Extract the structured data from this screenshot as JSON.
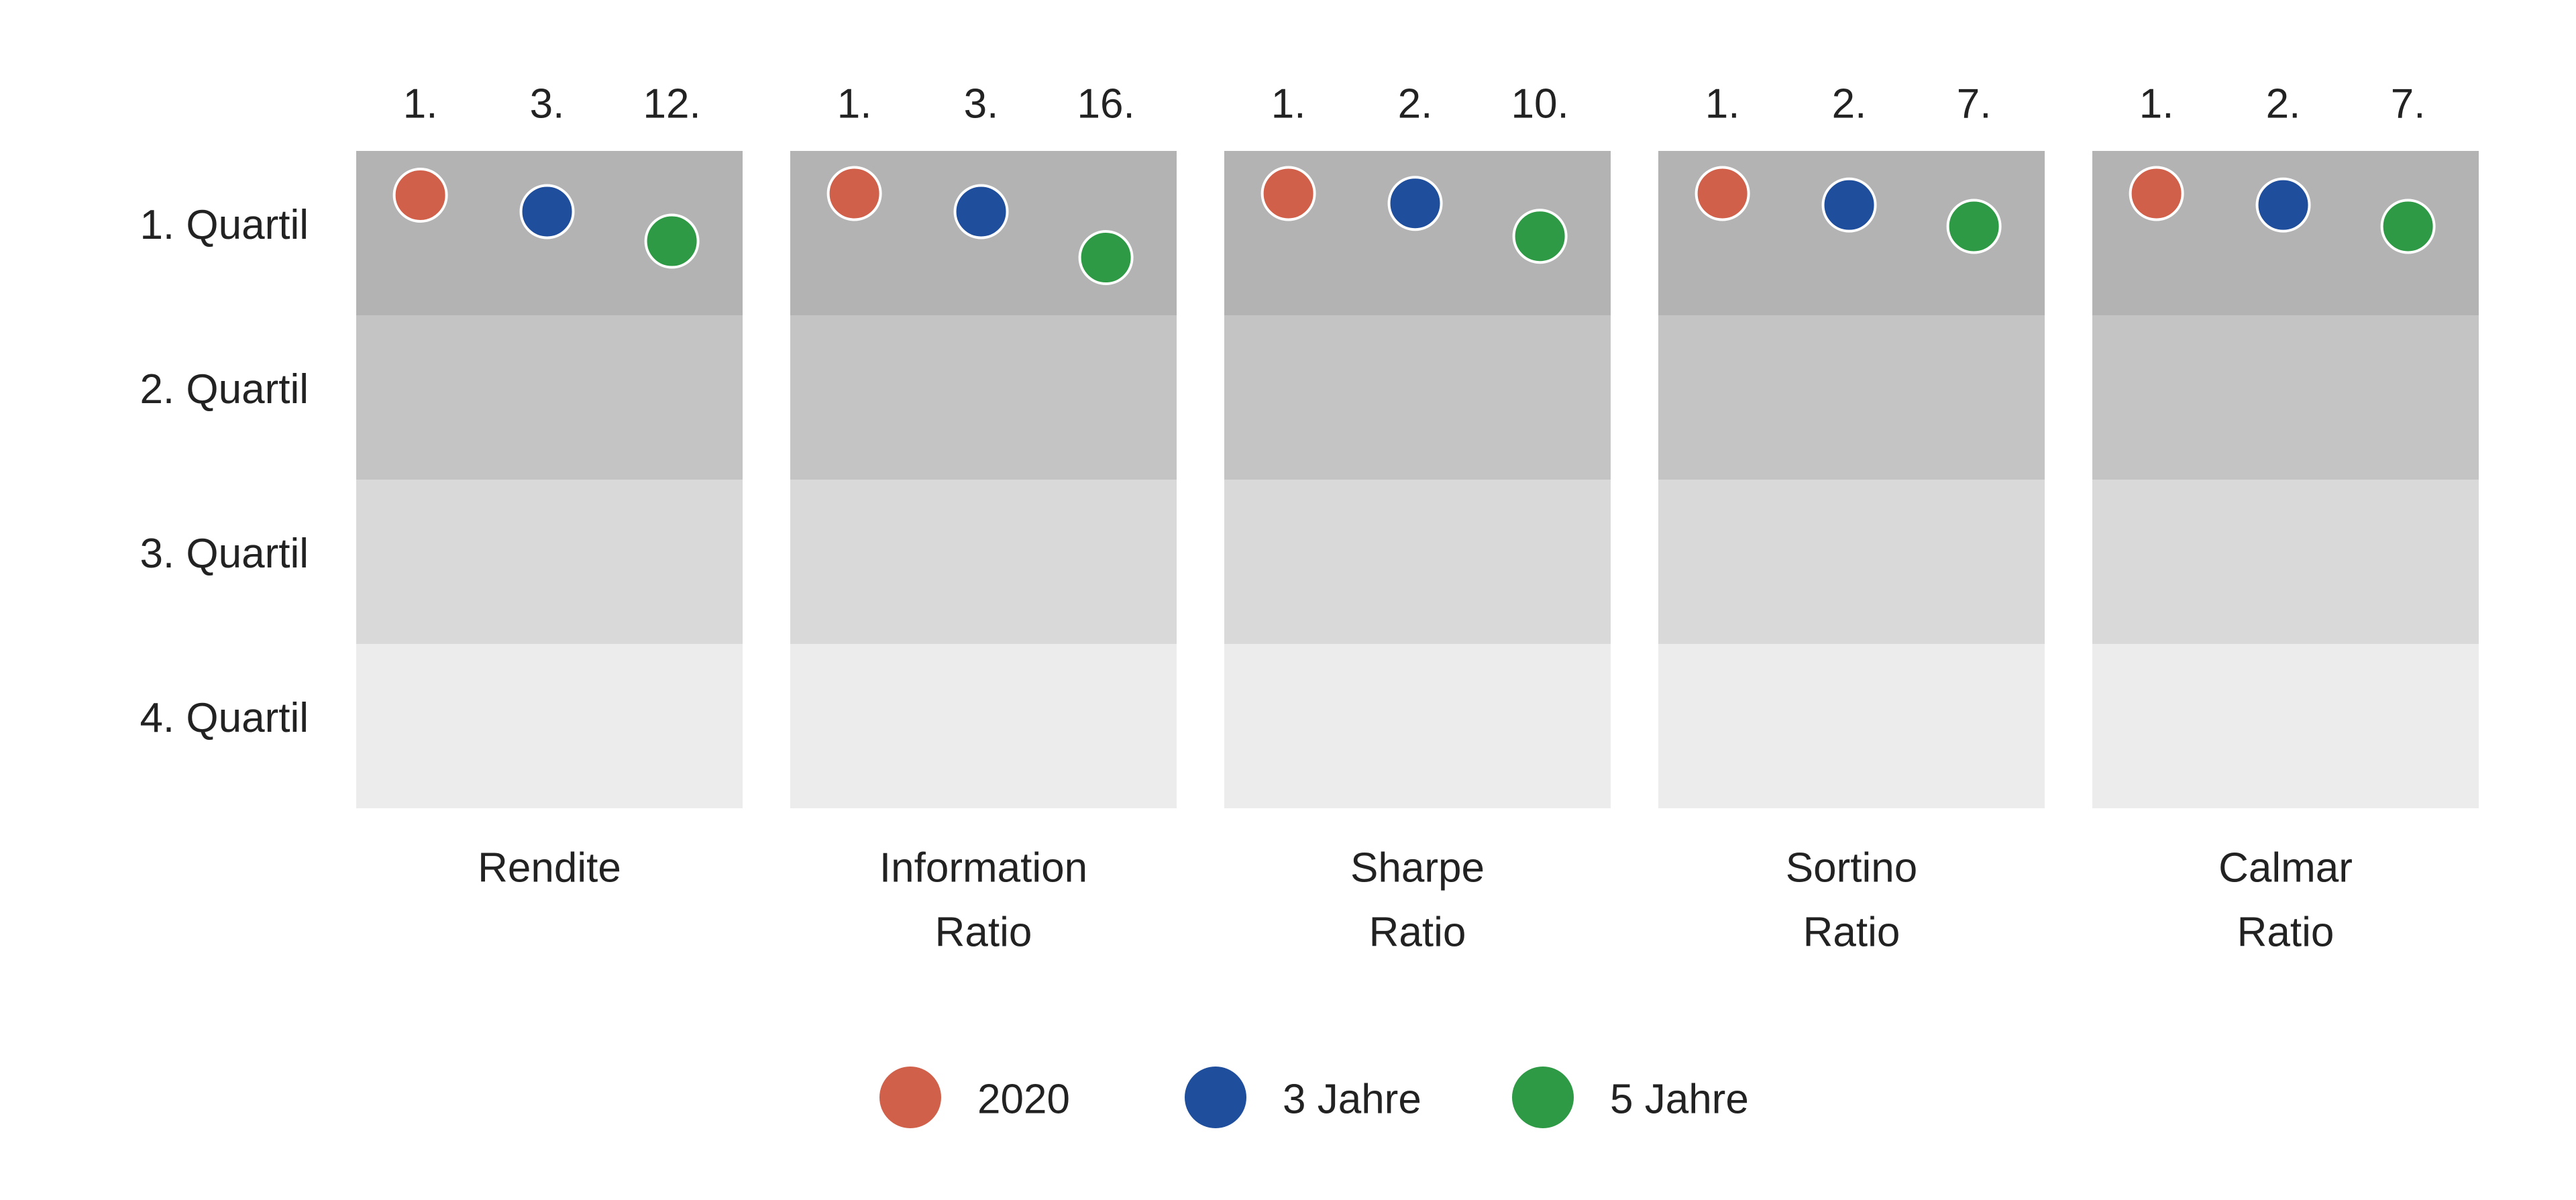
{
  "chart_data": {
    "type": "quartile-dot",
    "quartiles": [
      "1. Quartil",
      "2. Quartil",
      "3. Quartil",
      "4. Quartil"
    ],
    "band_colors": [
      "#b3b3b3",
      "#c4c4c4",
      "#d9d9d9",
      "#ececec"
    ],
    "categories": [
      [
        "Rendite"
      ],
      [
        "Information",
        "Ratio"
      ],
      [
        "Sharpe",
        "Ratio"
      ],
      [
        "Sortino",
        "Ratio"
      ],
      [
        "Calmar",
        "Ratio"
      ]
    ],
    "ylim": [
      0,
      100
    ],
    "series": [
      {
        "name": "2020",
        "color": "#d0604a",
        "values": [
          2.75,
          2.5,
          2.5,
          2.5,
          2.5
        ],
        "rank_labels": [
          "1.",
          "1.",
          "1.",
          "1.",
          "1."
        ]
      },
      {
        "name": "3 Jahre",
        "color": "#1f4e9c",
        "values": [
          5.25,
          5.25,
          4,
          4.25,
          4.25
        ],
        "rank_labels": [
          "3.",
          "3.",
          "2.",
          "2.",
          "2."
        ]
      },
      {
        "name": "5 Jahre",
        "color": "#2e9a45",
        "values": [
          9.75,
          12.25,
          9,
          7.5,
          7.5
        ],
        "rank_labels": [
          "12.",
          "16.",
          "10.",
          "7.",
          "7."
        ]
      }
    ]
  }
}
